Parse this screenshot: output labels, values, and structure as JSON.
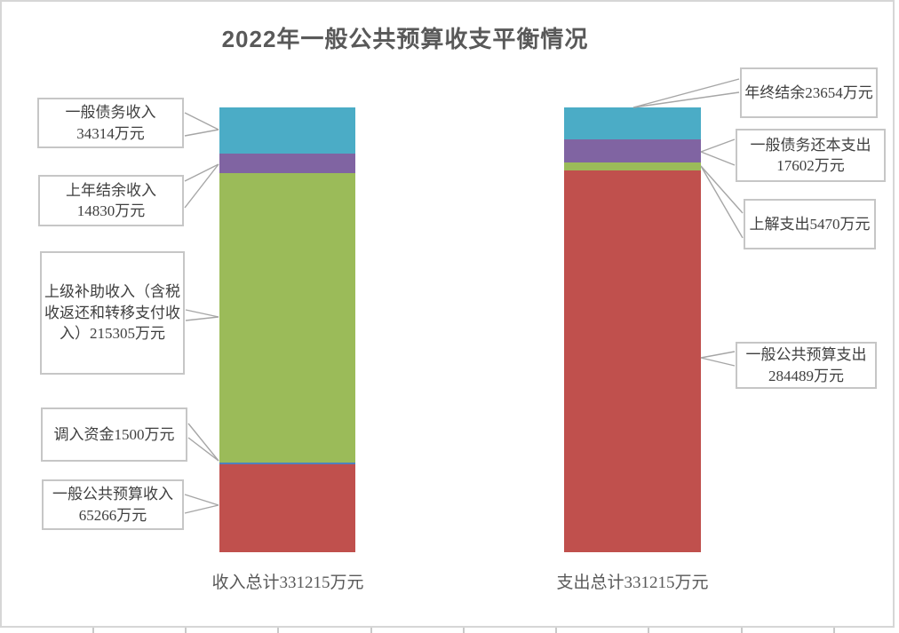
{
  "title": "2022年一般公共预算收支平衡情况",
  "colors": {
    "teal": "#4BACC6",
    "purple": "#8064A2",
    "green": "#9BBB59",
    "blue": "#4F81BD",
    "red": "#C0504D",
    "title_text": "#595959",
    "callout_border": "#C6C6C6",
    "leader_line": "#A6A6A6"
  },
  "chart_data": {
    "type": "bar",
    "stacked": true,
    "title": "2022年一般公共预算收支平衡情况",
    "unit": "万元",
    "categories": [
      "收入总计331215万元",
      "支出总计331215万元"
    ],
    "totals": [
      331215,
      331215
    ],
    "bars": [
      {
        "id": "income",
        "axis_label": "收入总计331215万元",
        "total": 331215,
        "segments_top_to_bottom": [
          {
            "name": "一般债务收入",
            "value": 34314,
            "color": "#4BACC6"
          },
          {
            "name": "上年结余收入",
            "value": 14830,
            "color": "#8064A2"
          },
          {
            "name": "上级补助收入（含税收返还和转移支付收入）",
            "value": 215305,
            "color": "#9BBB59"
          },
          {
            "name": "调入资金",
            "value": 1500,
            "color": "#4F81BD"
          },
          {
            "name": "一般公共预算收入",
            "value": 65266,
            "color": "#C0504D"
          }
        ]
      },
      {
        "id": "expense",
        "axis_label": "支出总计331215万元",
        "total": 331215,
        "segments_top_to_bottom": [
          {
            "name": "年终结余",
            "value": 23654,
            "color": "#4BACC6"
          },
          {
            "name": "一般债务还本支出",
            "value": 17602,
            "color": "#8064A2"
          },
          {
            "name": "上解支出",
            "value": 5470,
            "color": "#9BBB59"
          },
          {
            "name": "一般公共预算支出",
            "value": 284489,
            "color": "#C0504D"
          }
        ]
      }
    ]
  },
  "callouts": {
    "left": [
      {
        "text": "一般债务收入\n34314万元"
      },
      {
        "text": "上年结余收入\n14830万元"
      },
      {
        "text": "上级补助收入（含税收返还和转移支付收入）215305万元"
      },
      {
        "text": "调入资金1500万元"
      },
      {
        "text": "一般公共预算收入\n65266万元"
      }
    ],
    "right": [
      {
        "text": "年终结余23654万元"
      },
      {
        "text": "一般债务还本支出\n17602万元"
      },
      {
        "text": "上解支出5470万元"
      },
      {
        "text": "一般公共预算支出\n284489万元"
      }
    ]
  }
}
